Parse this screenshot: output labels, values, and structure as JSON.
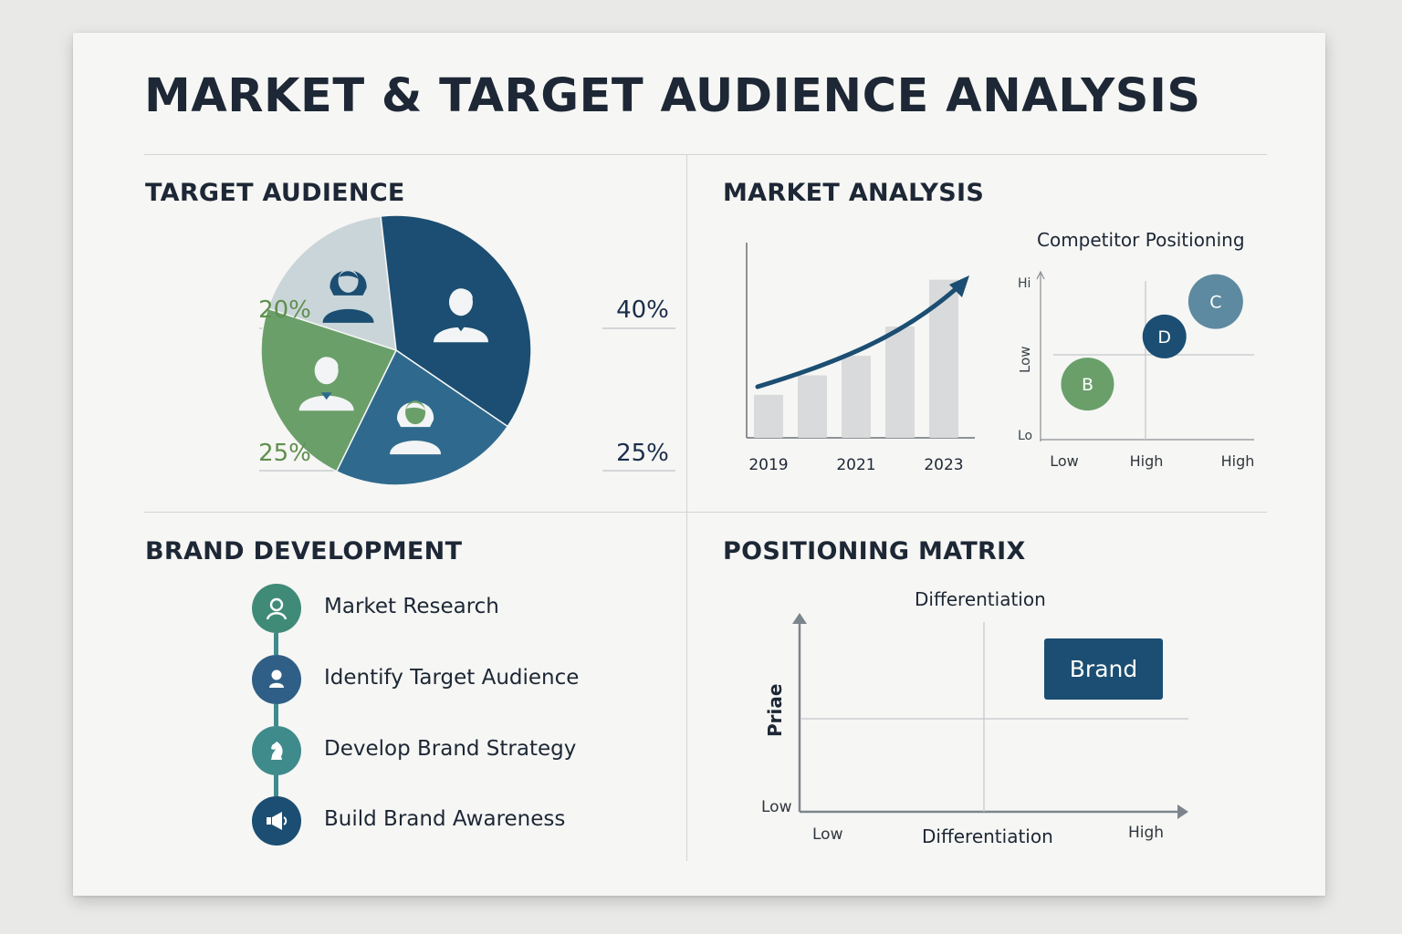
{
  "title": "MARKET & TARGET AUDIENCE ANALYSIS",
  "colors": {
    "navy": "#1b4e72",
    "blue": "#2f6a8e",
    "green": "#6a9f6a",
    "gray": "#c9d5d8",
    "teal": "#3f8b8c"
  },
  "target_audience": {
    "title": "TARGET AUDIENCE",
    "slice_icons": [
      "woman-icon",
      "man-icon",
      "woman-icon",
      "man-icon"
    ]
  },
  "market_analysis": {
    "title": "MARKET ANALYSIS",
    "competitor_title": "Competitor Positioning",
    "competitor_y_high": "Hi",
    "competitor_y_mid": "Low",
    "competitor_y_low": "Lo",
    "competitor_x_labels": [
      "Low",
      "High",
      "High"
    ]
  },
  "brand_development": {
    "title": "BRAND DEVELOPMENT",
    "steps": [
      {
        "label": "Market Research",
        "icon": "person-outline-icon",
        "color": "#3f8b78"
      },
      {
        "label": "Identify Target Audience",
        "icon": "user-icon",
        "color": "#2f5f86"
      },
      {
        "label": "Develop Brand Strategy",
        "icon": "chess-knight-icon",
        "color": "#3f8b8c"
      },
      {
        "label": "Build Brand Awareness",
        "icon": "megaphone-icon",
        "color": "#1b4e72"
      }
    ]
  },
  "positioning_matrix": {
    "title": "POSITIONING MATRIX",
    "top_label": "Differentiation",
    "x_label": "Differentiation",
    "y_label": "Priae",
    "y_low": "Low",
    "x_low": "Low",
    "x_high": "High",
    "brand_label": "Brand"
  },
  "chart_data": [
    {
      "type": "pie",
      "title": "",
      "slices": [
        {
          "value": 20,
          "label": "20%",
          "color": "#c9d5d8"
        },
        {
          "value": 40,
          "label": "40%",
          "color": "#1b4e72"
        },
        {
          "value": 25,
          "label": "25%",
          "color": "#2f6a8e"
        },
        {
          "value": 25,
          "label": "25%",
          "color": "#6a9f6a"
        }
      ]
    },
    {
      "type": "bar",
      "title": "",
      "categories": [
        "2019",
        "",
        "2021",
        "",
        "2023"
      ],
      "values": [
        22,
        32,
        42,
        57,
        81
      ],
      "ylim": [
        0,
        100
      ],
      "trend": "rising curve with arrow",
      "color": "#d9dadb"
    },
    {
      "type": "scatter",
      "title": "Competitor Positioning",
      "points": [
        {
          "label": "B",
          "x": 0.22,
          "y": 0.35,
          "color": "#6a9f6a"
        },
        {
          "label": "D",
          "x": 0.58,
          "y": 0.65,
          "color": "#1b4e72"
        },
        {
          "label": "C",
          "x": 0.82,
          "y": 0.87,
          "color": "#5d8aa0"
        }
      ],
      "xlim": [
        0,
        1
      ],
      "ylim": [
        0,
        1
      ],
      "x_labels": [
        "Low",
        "High",
        "High"
      ]
    },
    {
      "type": "scatter",
      "title": "Differentiation",
      "xlabel": "Differentiation",
      "ylabel": "Priae",
      "points": [
        {
          "label": "Brand",
          "x": 0.78,
          "y": 0.78
        }
      ],
      "xlim": [
        0,
        1
      ],
      "ylim": [
        0,
        1
      ]
    }
  ]
}
